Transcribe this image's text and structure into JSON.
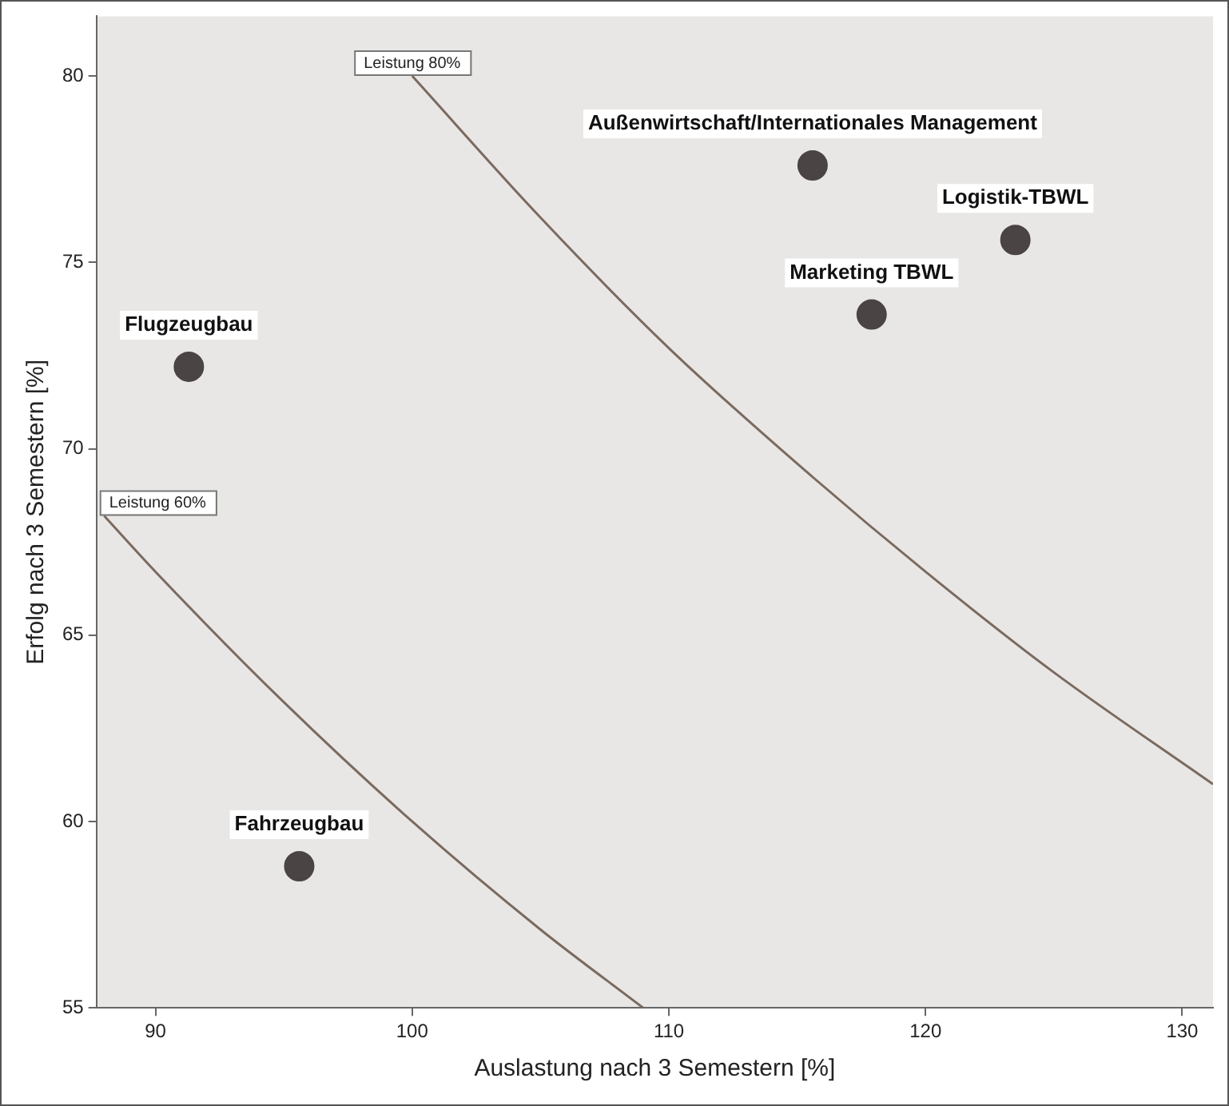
{
  "chart_data": {
    "type": "scatter",
    "xlabel": "Auslastung nach 3 Semestern [%]",
    "ylabel": "Erfolg nach 3 Semestern [%]",
    "xlim": [
      87.7,
      131.2
    ],
    "ylim": [
      55,
      81.6
    ],
    "xticks": [
      90,
      100,
      110,
      120,
      130
    ],
    "yticks": [
      55,
      60,
      65,
      70,
      75,
      80
    ],
    "grid": false,
    "legend": false,
    "marker": "circle",
    "series": [
      {
        "name": "Flugzeugbau",
        "color": "#4a4444",
        "x": [
          91.3
        ],
        "values": [
          72.2
        ]
      },
      {
        "name": "Fahrzeugbau",
        "color": "#4a4444",
        "x": [
          95.6
        ],
        "values": [
          58.8
        ]
      },
      {
        "name": "Außenwirtschaft/Internationales Management",
        "color": "#4a4444",
        "x": [
          115.6
        ],
        "values": [
          77.6
        ]
      },
      {
        "name": "Logistik-TBWL",
        "color": "#4a4444",
        "x": [
          123.5
        ],
        "values": [
          75.6
        ]
      },
      {
        "name": "Marketing TBWL",
        "color": "#4a4444",
        "x": [
          117.9
        ],
        "values": [
          73.6
        ]
      },
      {
        "type": "line",
        "color": "#7a6a60",
        "marker": "none",
        "x": [
          100,
          105,
          110,
          115,
          120,
          125,
          131.2
        ],
        "values": [
          80,
          76.2,
          72.7,
          69.6,
          66.7,
          64,
          61
        ]
      },
      {
        "type": "line",
        "color": "#7a6a60",
        "marker": "none",
        "x": [
          88,
          90,
          95,
          100,
          105,
          109
        ],
        "values": [
          68.2,
          66.7,
          63.2,
          60,
          57.1,
          55
        ]
      }
    ],
    "annotations": [
      {
        "text": "Leistung 80%",
        "x": 100,
        "y": 80
      },
      {
        "text": "Leistung 60%",
        "x": 88,
        "y": 68.2
      }
    ]
  }
}
